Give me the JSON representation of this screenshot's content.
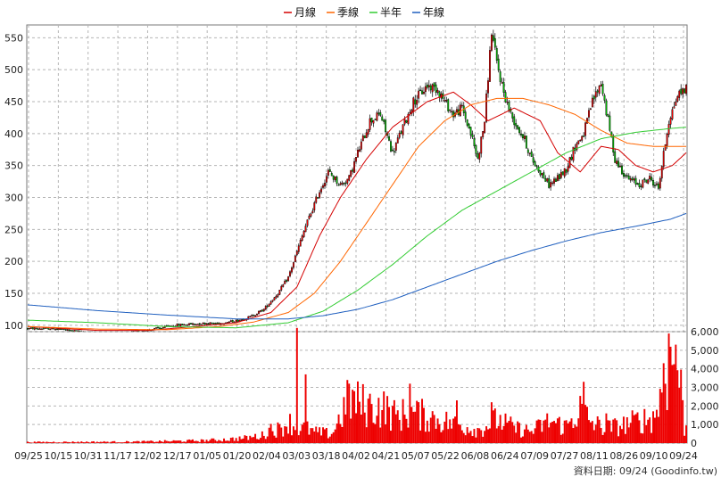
{
  "legend": {
    "items": [
      {
        "label": "月線",
        "color": "#d40000"
      },
      {
        "label": "季線",
        "color": "#ff6600"
      },
      {
        "label": "半年",
        "color": "#33cc33"
      },
      {
        "label": "年線",
        "color": "#1f5fbf"
      }
    ]
  },
  "footer": {
    "text": "資料日期: 09/24  (Goodinfo.tw)"
  },
  "chart_data": [
    {
      "type": "candlestick",
      "ylim": [
        90,
        570
      ],
      "yticks": [
        100,
        150,
        200,
        250,
        300,
        350,
        400,
        450,
        500,
        550
      ],
      "grid": true,
      "legend_position": "top-center",
      "up_color": "#ee0000",
      "down_color": "#00bb00",
      "xticks": [
        "09/25",
        "10/15",
        "10/31",
        "11/17",
        "12/02",
        "12/17",
        "01/05",
        "01/20",
        "02/04",
        "03/03",
        "03/18",
        "04/02",
        "04/21",
        "05/07",
        "05/22",
        "06/08",
        "06/24",
        "07/09",
        "07/27",
        "08/11",
        "08/26",
        "09/10",
        "09/24"
      ],
      "price_anchors": [
        [
          0,
          95
        ],
        [
          15,
          95
        ],
        [
          30,
          90
        ],
        [
          45,
          88
        ],
        [
          55,
          88
        ],
        [
          70,
          93
        ],
        [
          85,
          100
        ],
        [
          100,
          103
        ],
        [
          110,
          103
        ],
        [
          120,
          107
        ],
        [
          128,
          113
        ],
        [
          136,
          125
        ],
        [
          144,
          150
        ],
        [
          150,
          175
        ],
        [
          155,
          215
        ],
        [
          160,
          255
        ],
        [
          168,
          310
        ],
        [
          173,
          340
        ],
        [
          180,
          320
        ],
        [
          185,
          330
        ],
        [
          190,
          370
        ],
        [
          197,
          420
        ],
        [
          203,
          430
        ],
        [
          210,
          370
        ],
        [
          216,
          410
        ],
        [
          222,
          450
        ],
        [
          230,
          475
        ],
        [
          236,
          470
        ],
        [
          240,
          450
        ],
        [
          245,
          430
        ],
        [
          250,
          440
        ],
        [
          255,
          400
        ],
        [
          259,
          360
        ],
        [
          263,
          420
        ],
        [
          267,
          560
        ],
        [
          270,
          510
        ],
        [
          274,
          465
        ],
        [
          278,
          430
        ],
        [
          282,
          410
        ],
        [
          286,
          390
        ],
        [
          290,
          360
        ],
        [
          295,
          340
        ],
        [
          300,
          320
        ],
        [
          305,
          330
        ],
        [
          310,
          345
        ],
        [
          315,
          380
        ],
        [
          320,
          400
        ],
        [
          325,
          450
        ],
        [
          330,
          480
        ],
        [
          334,
          420
        ],
        [
          338,
          360
        ],
        [
          345,
          330
        ],
        [
          352,
          320
        ],
        [
          358,
          330
        ],
        [
          363,
          315
        ],
        [
          369,
          420
        ],
        [
          374,
          460
        ],
        [
          378,
          470
        ]
      ],
      "series": [
        {
          "name": "月線",
          "points": [
            [
              0,
              98
            ],
            [
              40,
              92
            ],
            [
              70,
              92
            ],
            [
              100,
              99
            ],
            [
              120,
              104
            ],
            [
              140,
              120
            ],
            [
              155,
              160
            ],
            [
              168,
              240
            ],
            [
              180,
              300
            ],
            [
              195,
              360
            ],
            [
              210,
              410
            ],
            [
              230,
              450
            ],
            [
              245,
              465
            ],
            [
              255,
              445
            ],
            [
              265,
              420
            ],
            [
              280,
              440
            ],
            [
              295,
              420
            ],
            [
              305,
              370
            ],
            [
              318,
              340
            ],
            [
              330,
              380
            ],
            [
              340,
              375
            ],
            [
              350,
              350
            ],
            [
              360,
              340
            ],
            [
              371,
              350
            ],
            [
              379,
              370
            ]
          ]
        },
        {
          "name": "季線",
          "points": [
            [
              0,
              98
            ],
            [
              40,
              94
            ],
            [
              80,
              93
            ],
            [
              110,
              98
            ],
            [
              130,
              105
            ],
            [
              150,
              120
            ],
            [
              165,
              150
            ],
            [
              180,
              200
            ],
            [
              195,
              260
            ],
            [
              210,
              320
            ],
            [
              225,
              380
            ],
            [
              240,
              420
            ],
            [
              255,
              445
            ],
            [
              270,
              455
            ],
            [
              285,
              455
            ],
            [
              300,
              445
            ],
            [
              315,
              430
            ],
            [
              330,
              405
            ],
            [
              345,
              385
            ],
            [
              360,
              380
            ],
            [
              379,
              380
            ]
          ]
        },
        {
          "name": "半年",
          "points": [
            [
              0,
              108
            ],
            [
              40,
              104
            ],
            [
              80,
              98
            ],
            [
              120,
              96
            ],
            [
              150,
              104
            ],
            [
              170,
              122
            ],
            [
              190,
              155
            ],
            [
              210,
              195
            ],
            [
              230,
              240
            ],
            [
              250,
              280
            ],
            [
              270,
              310
            ],
            [
              290,
              340
            ],
            [
              310,
              370
            ],
            [
              330,
              392
            ],
            [
              350,
              402
            ],
            [
              370,
              408
            ],
            [
              379,
              410
            ]
          ]
        },
        {
          "name": "年線",
          "points": [
            [
              0,
              132
            ],
            [
              40,
              123
            ],
            [
              80,
              116
            ],
            [
              120,
              110
            ],
            [
              150,
              110
            ],
            [
              170,
              115
            ],
            [
              190,
              125
            ],
            [
              210,
              140
            ],
            [
              230,
              160
            ],
            [
              250,
              180
            ],
            [
              270,
              200
            ],
            [
              290,
              217
            ],
            [
              310,
              232
            ],
            [
              330,
              245
            ],
            [
              350,
              255
            ],
            [
              370,
              266
            ],
            [
              379,
              275
            ]
          ]
        }
      ]
    },
    {
      "type": "bar",
      "ylim": [
        0,
        6000
      ],
      "yticks": [
        0,
        1000,
        2000,
        3000,
        4000,
        5000,
        6000
      ],
      "ytick_labels": [
        "0",
        "1,000",
        "2,000",
        "3,000",
        "4,000",
        "5,000",
        "6,000"
      ],
      "color": "#ee0000",
      "volume_anchors": [
        [
          0,
          60
        ],
        [
          60,
          80
        ],
        [
          100,
          150
        ],
        [
          115,
          220
        ],
        [
          125,
          300
        ],
        [
          135,
          450
        ],
        [
          140,
          900
        ],
        [
          145,
          800
        ],
        [
          150,
          1300
        ],
        [
          155,
          800
        ],
        [
          160,
          900
        ],
        [
          165,
          650
        ],
        [
          175,
          550
        ],
        [
          185,
          2600
        ],
        [
          195,
          2200
        ],
        [
          205,
          2100
        ],
        [
          212,
          1600
        ],
        [
          220,
          1800
        ],
        [
          230,
          1600
        ],
        [
          240,
          1300
        ],
        [
          250,
          1000
        ],
        [
          260,
          800
        ],
        [
          270,
          1400
        ],
        [
          280,
          900
        ],
        [
          290,
          700
        ],
        [
          300,
          1300
        ],
        [
          310,
          1000
        ],
        [
          318,
          2000
        ],
        [
          325,
          1200
        ],
        [
          332,
          900
        ],
        [
          340,
          1000
        ],
        [
          350,
          1300
        ],
        [
          360,
          1500
        ],
        [
          366,
          3200
        ],
        [
          371,
          4800
        ],
        [
          375,
          4200
        ],
        [
          378,
          900
        ]
      ],
      "spikes": [
        [
          155,
          6200
        ],
        [
          160,
          3700
        ],
        [
          185,
          3200
        ],
        [
          220,
          3200
        ],
        [
          247,
          2300
        ],
        [
          267,
          2200
        ],
        [
          320,
          3300
        ],
        [
          333,
          1600
        ],
        [
          366,
          4300
        ],
        [
          369,
          5900
        ],
        [
          373,
          5300
        ]
      ]
    }
  ]
}
